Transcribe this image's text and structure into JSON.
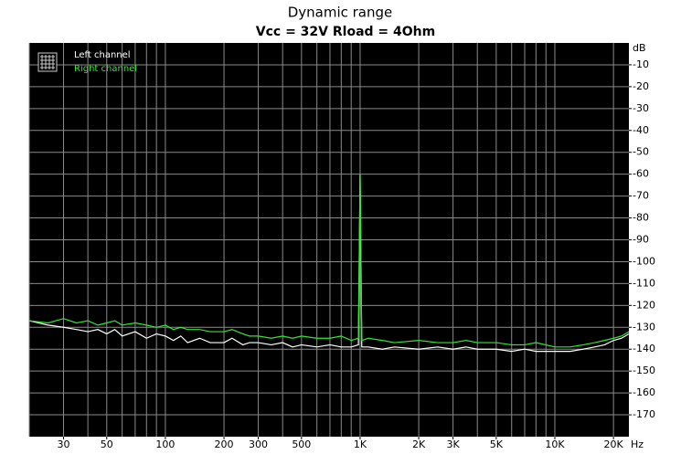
{
  "chart_data": {
    "type": "line",
    "title": "Dynamic range",
    "subtitle": "Vcc = 32V Rload = 4Ohm",
    "x_label": "Hz",
    "y_label": "dB",
    "x_log": true,
    "xlim": [
      20,
      24000
    ],
    "ylim": [
      -180,
      0
    ],
    "xticks": [
      30,
      50,
      100,
      200,
      300,
      500,
      {
        "value": 1000,
        "label": "1K"
      },
      {
        "value": 2000,
        "label": "2K"
      },
      {
        "value": 3000,
        "label": "3K"
      },
      {
        "value": 5000,
        "label": "5K"
      },
      {
        "value": 10000,
        "label": "10K"
      },
      {
        "value": 20000,
        "label": "20K"
      }
    ],
    "xgrid": [
      20,
      30,
      40,
      50,
      60,
      70,
      80,
      90,
      100,
      200,
      300,
      400,
      500,
      600,
      700,
      800,
      900,
      1000,
      2000,
      3000,
      4000,
      5000,
      6000,
      7000,
      8000,
      9000,
      10000,
      20000
    ],
    "yticks": [
      -10,
      -20,
      -30,
      -40,
      -50,
      -60,
      -70,
      -80,
      -90,
      -100,
      -110,
      -120,
      -130,
      -140,
      -150,
      -160,
      -170
    ],
    "ygrid": [
      -10,
      -20,
      -30,
      -40,
      -50,
      -60,
      -70,
      -80,
      -90,
      -100,
      -110,
      -120,
      -130,
      -140,
      -150,
      -160,
      -170
    ],
    "grid": true,
    "background": "#000000",
    "legend": "upper left",
    "x": [
      20,
      25,
      30,
      35,
      40,
      45,
      50,
      55,
      60,
      70,
      80,
      90,
      100,
      110,
      120,
      130,
      150,
      170,
      200,
      220,
      250,
      270,
      300,
      350,
      400,
      450,
      500,
      600,
      700,
      800,
      900,
      980,
      1000,
      1020,
      1100,
      1300,
      1500,
      2000,
      2500,
      3000,
      3500,
      4000,
      5000,
      6000,
      7000,
      8000,
      10000,
      12000,
      14000,
      16000,
      18000,
      20000,
      22000,
      24000
    ],
    "series": [
      {
        "name": "Left channel",
        "color": "#ffffff",
        "values": [
          -127,
          -129,
          -130,
          -131,
          -132,
          -131,
          -133,
          -131,
          -134,
          -132,
          -135,
          -133,
          -134,
          -136,
          -134,
          -137,
          -135,
          -137,
          -137,
          -135,
          -138,
          -137,
          -137,
          -138,
          -137,
          -139,
          -138,
          -139,
          -138,
          -139,
          -139,
          -138,
          -60,
          -139,
          -139,
          -140,
          -139,
          -140,
          -139,
          -140,
          -139,
          -140,
          -140,
          -141,
          -140,
          -141,
          -141,
          -141,
          -140,
          -139,
          -138,
          -136,
          -135,
          -133
        ]
      },
      {
        "name": "Right channel",
        "color": "#33e633",
        "values": [
          -127,
          -128,
          -126,
          -128,
          -127,
          -129,
          -128,
          -127,
          -129,
          -128,
          -129,
          -130,
          -129,
          -131,
          -130,
          -131,
          -131,
          -132,
          -132,
          -131,
          -133,
          -134,
          -134,
          -135,
          -134,
          -135,
          -134,
          -135,
          -135,
          -134,
          -136,
          -135,
          -60,
          -136,
          -135,
          -136,
          -137,
          -136,
          -137,
          -137,
          -136,
          -137,
          -137,
          -138,
          -138,
          -137,
          -139,
          -139,
          -138,
          -137,
          -136,
          -135,
          -134,
          -132
        ]
      }
    ]
  }
}
